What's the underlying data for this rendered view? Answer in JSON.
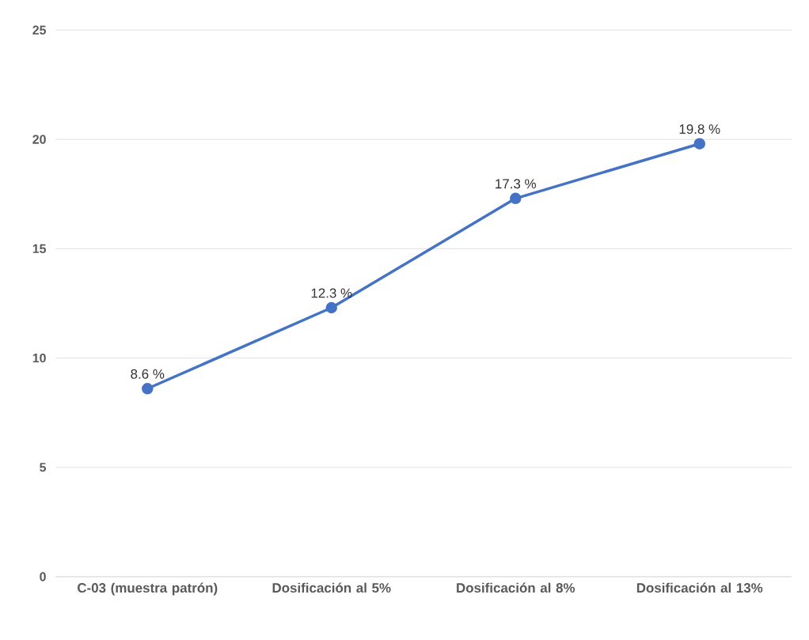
{
  "chart_data": {
    "type": "line",
    "categories": [
      "C-03 (muestra patrón)",
      "Dosificación al 5%",
      "Dosificación al 8%",
      "Dosificación al 13%"
    ],
    "values": [
      8.6,
      12.3,
      17.3,
      19.8
    ],
    "value_labels": [
      "8.6 %",
      "12.3 %",
      "17.3 %",
      "19.8 %"
    ],
    "color": "#4472c4",
    "ylim": [
      0,
      25
    ],
    "yticks": [
      0,
      5,
      10,
      15,
      20,
      25
    ],
    "grid": "y",
    "marker": "circle",
    "line_style": "solid"
  }
}
